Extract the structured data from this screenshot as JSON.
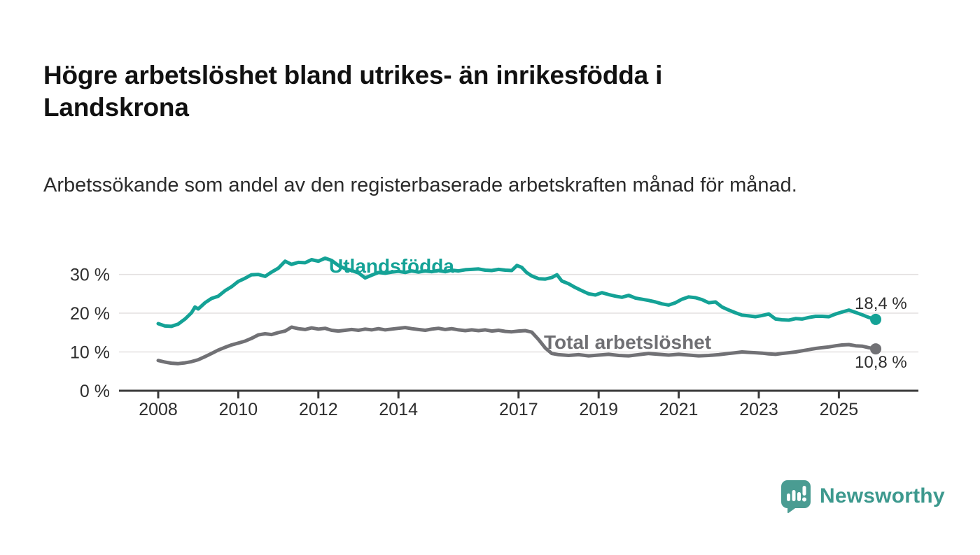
{
  "header": {
    "title": "Högre arbetslöshet bland utrikes- än inrikesfödda i Landskrona",
    "subtitle": "Arbetssökande som andel av den registerbaserade arbetskraften månad för månad."
  },
  "chart_data": {
    "type": "line",
    "title": "Högre arbetslöshet bland utrikes- än inrikesfödda i Landskrona",
    "xlabel": "",
    "ylabel": "",
    "x_ticks": [
      2008,
      2010,
      2012,
      2014,
      2017,
      2019,
      2021,
      2023,
      2025
    ],
    "y_ticks": [
      0,
      10,
      20,
      30
    ],
    "y_tick_suffix": " %",
    "xlim": [
      2007.0,
      2027.0
    ],
    "ylim": [
      0,
      37
    ],
    "grid": "horizontal",
    "legend_position": "inline-labels",
    "axis_color": "#3a3a3a",
    "grid_color": "#e3e0e0",
    "tick_text_color": "#2e2e2e",
    "series": [
      {
        "name": "Utlandsfödda",
        "color": "#14a296",
        "end_label": "18,4 %",
        "end_value": 18.4,
        "points": [
          [
            2008.0,
            17.3
          ],
          [
            2008.17,
            16.7
          ],
          [
            2008.33,
            16.6
          ],
          [
            2008.5,
            17.2
          ],
          [
            2008.67,
            18.5
          ],
          [
            2008.83,
            20.1
          ],
          [
            2008.92,
            21.6
          ],
          [
            2009.0,
            21.1
          ],
          [
            2009.17,
            22.7
          ],
          [
            2009.33,
            23.8
          ],
          [
            2009.5,
            24.4
          ],
          [
            2009.67,
            25.8
          ],
          [
            2009.83,
            26.8
          ],
          [
            2010.0,
            28.2
          ],
          [
            2010.17,
            29.0
          ],
          [
            2010.33,
            29.9
          ],
          [
            2010.5,
            30.0
          ],
          [
            2010.67,
            29.5
          ],
          [
            2010.83,
            30.6
          ],
          [
            2011.0,
            31.6
          ],
          [
            2011.17,
            33.4
          ],
          [
            2011.33,
            32.6
          ],
          [
            2011.5,
            33.1
          ],
          [
            2011.67,
            33.0
          ],
          [
            2011.83,
            33.8
          ],
          [
            2012.0,
            33.4
          ],
          [
            2012.17,
            34.2
          ],
          [
            2012.33,
            33.6
          ],
          [
            2012.5,
            32.3
          ],
          [
            2012.67,
            31.5
          ],
          [
            2012.83,
            31.0
          ],
          [
            2013.0,
            30.4
          ],
          [
            2013.17,
            29.1
          ],
          [
            2013.33,
            29.8
          ],
          [
            2013.5,
            30.5
          ],
          [
            2013.67,
            30.3
          ],
          [
            2013.83,
            30.6
          ],
          [
            2014.0,
            30.8
          ],
          [
            2014.17,
            30.5
          ],
          [
            2014.33,
            30.9
          ],
          [
            2014.5,
            30.6
          ],
          [
            2014.67,
            30.9
          ],
          [
            2014.83,
            30.7
          ],
          [
            2015.0,
            31.0
          ],
          [
            2015.17,
            30.7
          ],
          [
            2015.33,
            31.1
          ],
          [
            2015.5,
            30.9
          ],
          [
            2015.67,
            31.2
          ],
          [
            2015.83,
            31.3
          ],
          [
            2016.0,
            31.4
          ],
          [
            2016.17,
            31.1
          ],
          [
            2016.33,
            31.0
          ],
          [
            2016.5,
            31.3
          ],
          [
            2016.67,
            31.1
          ],
          [
            2016.83,
            31.0
          ],
          [
            2016.96,
            32.3
          ],
          [
            2017.08,
            31.8
          ],
          [
            2017.2,
            30.5
          ],
          [
            2017.33,
            29.6
          ],
          [
            2017.5,
            28.9
          ],
          [
            2017.67,
            28.8
          ],
          [
            2017.83,
            29.2
          ],
          [
            2017.96,
            29.9
          ],
          [
            2018.08,
            28.3
          ],
          [
            2018.25,
            27.6
          ],
          [
            2018.42,
            26.6
          ],
          [
            2018.58,
            25.8
          ],
          [
            2018.75,
            25.0
          ],
          [
            2018.92,
            24.7
          ],
          [
            2019.08,
            25.3
          ],
          [
            2019.25,
            24.8
          ],
          [
            2019.42,
            24.4
          ],
          [
            2019.58,
            24.1
          ],
          [
            2019.75,
            24.6
          ],
          [
            2019.92,
            23.9
          ],
          [
            2020.08,
            23.6
          ],
          [
            2020.25,
            23.3
          ],
          [
            2020.42,
            22.9
          ],
          [
            2020.58,
            22.4
          ],
          [
            2020.75,
            22.1
          ],
          [
            2020.92,
            22.7
          ],
          [
            2021.08,
            23.6
          ],
          [
            2021.25,
            24.2
          ],
          [
            2021.42,
            24.0
          ],
          [
            2021.58,
            23.5
          ],
          [
            2021.75,
            22.7
          ],
          [
            2021.92,
            22.9
          ],
          [
            2022.08,
            21.6
          ],
          [
            2022.25,
            20.8
          ],
          [
            2022.42,
            20.1
          ],
          [
            2022.58,
            19.5
          ],
          [
            2022.75,
            19.3
          ],
          [
            2022.92,
            19.1
          ],
          [
            2023.08,
            19.4
          ],
          [
            2023.25,
            19.8
          ],
          [
            2023.42,
            18.5
          ],
          [
            2023.58,
            18.3
          ],
          [
            2023.75,
            18.2
          ],
          [
            2023.92,
            18.6
          ],
          [
            2024.08,
            18.5
          ],
          [
            2024.25,
            18.9
          ],
          [
            2024.42,
            19.2
          ],
          [
            2024.58,
            19.2
          ],
          [
            2024.75,
            19.1
          ],
          [
            2024.92,
            19.8
          ],
          [
            2025.08,
            20.3
          ],
          [
            2025.25,
            20.8
          ],
          [
            2025.42,
            20.2
          ],
          [
            2025.58,
            19.6
          ],
          [
            2025.75,
            18.9
          ],
          [
            2025.92,
            18.4
          ]
        ]
      },
      {
        "name": "Total arbetslöshet",
        "color": "#717175",
        "end_label": "10,8 %",
        "end_value": 10.8,
        "points": [
          [
            2008.0,
            7.8
          ],
          [
            2008.17,
            7.4
          ],
          [
            2008.33,
            7.1
          ],
          [
            2008.5,
            7.0
          ],
          [
            2008.67,
            7.2
          ],
          [
            2008.83,
            7.5
          ],
          [
            2009.0,
            8.0
          ],
          [
            2009.17,
            8.8
          ],
          [
            2009.33,
            9.6
          ],
          [
            2009.5,
            10.5
          ],
          [
            2009.67,
            11.2
          ],
          [
            2009.83,
            11.8
          ],
          [
            2010.0,
            12.3
          ],
          [
            2010.17,
            12.8
          ],
          [
            2010.33,
            13.5
          ],
          [
            2010.5,
            14.4
          ],
          [
            2010.67,
            14.7
          ],
          [
            2010.83,
            14.5
          ],
          [
            2011.0,
            15.0
          ],
          [
            2011.17,
            15.4
          ],
          [
            2011.33,
            16.4
          ],
          [
            2011.5,
            16.0
          ],
          [
            2011.67,
            15.8
          ],
          [
            2011.83,
            16.2
          ],
          [
            2012.0,
            15.9
          ],
          [
            2012.17,
            16.1
          ],
          [
            2012.33,
            15.6
          ],
          [
            2012.5,
            15.4
          ],
          [
            2012.67,
            15.6
          ],
          [
            2012.83,
            15.8
          ],
          [
            2013.0,
            15.6
          ],
          [
            2013.17,
            15.9
          ],
          [
            2013.33,
            15.7
          ],
          [
            2013.5,
            16.0
          ],
          [
            2013.67,
            15.7
          ],
          [
            2013.83,
            15.9
          ],
          [
            2014.0,
            16.1
          ],
          [
            2014.17,
            16.3
          ],
          [
            2014.33,
            16.0
          ],
          [
            2014.5,
            15.8
          ],
          [
            2014.67,
            15.6
          ],
          [
            2014.83,
            15.9
          ],
          [
            2015.0,
            16.1
          ],
          [
            2015.17,
            15.8
          ],
          [
            2015.33,
            16.0
          ],
          [
            2015.5,
            15.7
          ],
          [
            2015.67,
            15.5
          ],
          [
            2015.83,
            15.7
          ],
          [
            2016.0,
            15.5
          ],
          [
            2016.17,
            15.7
          ],
          [
            2016.33,
            15.4
          ],
          [
            2016.5,
            15.6
          ],
          [
            2016.67,
            15.3
          ],
          [
            2016.83,
            15.2
          ],
          [
            2017.0,
            15.4
          ],
          [
            2017.17,
            15.5
          ],
          [
            2017.33,
            15.1
          ],
          [
            2017.5,
            13.2
          ],
          [
            2017.67,
            11.0
          ],
          [
            2017.83,
            9.6
          ],
          [
            2018.0,
            9.3
          ],
          [
            2018.25,
            9.1
          ],
          [
            2018.5,
            9.3
          ],
          [
            2018.75,
            9.0
          ],
          [
            2019.0,
            9.2
          ],
          [
            2019.25,
            9.4
          ],
          [
            2019.5,
            9.1
          ],
          [
            2019.75,
            9.0
          ],
          [
            2020.0,
            9.3
          ],
          [
            2020.25,
            9.6
          ],
          [
            2020.5,
            9.4
          ],
          [
            2020.75,
            9.2
          ],
          [
            2021.0,
            9.4
          ],
          [
            2021.25,
            9.2
          ],
          [
            2021.5,
            9.0
          ],
          [
            2021.75,
            9.1
          ],
          [
            2022.0,
            9.3
          ],
          [
            2022.25,
            9.6
          ],
          [
            2022.42,
            9.8
          ],
          [
            2022.58,
            10.0
          ],
          [
            2022.75,
            9.9
          ],
          [
            2022.92,
            9.8
          ],
          [
            2023.08,
            9.7
          ],
          [
            2023.25,
            9.5
          ],
          [
            2023.42,
            9.4
          ],
          [
            2023.58,
            9.6
          ],
          [
            2023.75,
            9.8
          ],
          [
            2023.92,
            10.0
          ],
          [
            2024.08,
            10.3
          ],
          [
            2024.25,
            10.6
          ],
          [
            2024.42,
            10.9
          ],
          [
            2024.58,
            11.1
          ],
          [
            2024.75,
            11.3
          ],
          [
            2024.92,
            11.6
          ],
          [
            2025.08,
            11.8
          ],
          [
            2025.25,
            11.9
          ],
          [
            2025.42,
            11.6
          ],
          [
            2025.58,
            11.5
          ],
          [
            2025.75,
            11.1
          ],
          [
            2025.92,
            10.8
          ]
        ]
      }
    ]
  },
  "footer": {
    "brand": "Newsworthy",
    "logo_icon": "bar-chart-speech-bubble-icon",
    "brand_color": "#3d998e",
    "logo_fill": "#4a9c92"
  }
}
